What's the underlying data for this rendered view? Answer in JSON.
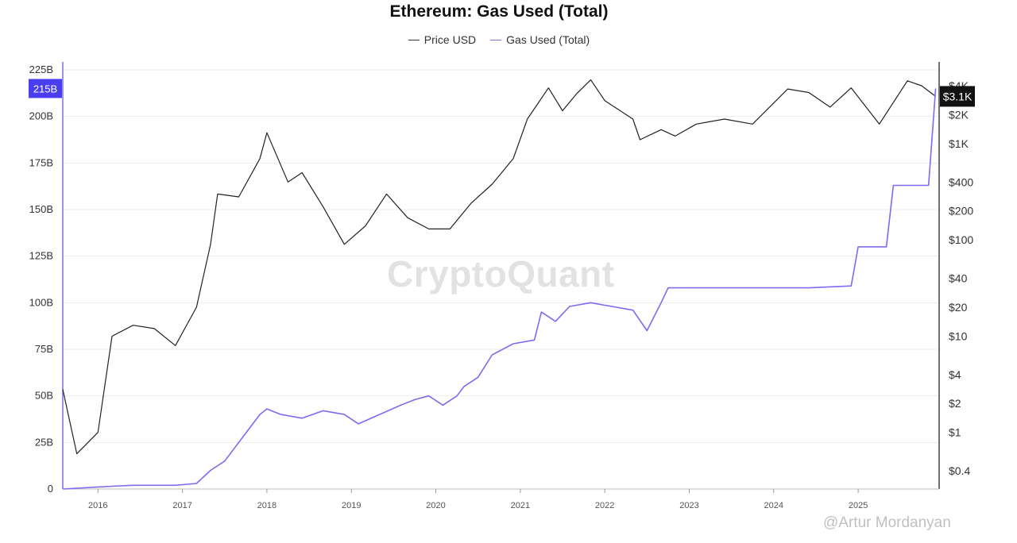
{
  "chart_data": {
    "type": "line",
    "title": "Ethereum: Gas Used (Total)",
    "xlabel": "",
    "ylabel_left": "",
    "ylabel_right": "",
    "x_ticks": [
      "2016",
      "2017",
      "2018",
      "2019",
      "2020",
      "2021",
      "2022",
      "2023",
      "2024",
      "2025"
    ],
    "y_left_ticks": [
      "0",
      "25B",
      "50B",
      "75B",
      "100B",
      "125B",
      "150B",
      "175B",
      "200B",
      "225B"
    ],
    "y_left_range": [
      0,
      225
    ],
    "y_right_ticks": [
      "$0.4",
      "$1",
      "$2",
      "$4",
      "$10",
      "$20",
      "$40",
      "$100",
      "$200",
      "$400",
      "$1K",
      "$2K",
      "$4K"
    ],
    "y_right_scale": "log",
    "grid": "horizontal",
    "legend_position": "top-center",
    "series": [
      {
        "name": "Price USD",
        "color": "#222222",
        "axis": "right",
        "x": [
          "2015-08",
          "2015-10",
          "2016-01",
          "2016-03",
          "2016-06",
          "2016-09",
          "2016-12",
          "2017-03",
          "2017-05",
          "2017-06",
          "2017-09",
          "2017-12",
          "2018-01",
          "2018-04",
          "2018-06",
          "2018-09",
          "2018-12",
          "2019-03",
          "2019-06",
          "2019-09",
          "2019-12",
          "2020-03",
          "2020-06",
          "2020-09",
          "2020-12",
          "2021-02",
          "2021-05",
          "2021-07",
          "2021-09",
          "2021-11",
          "2022-01",
          "2022-05",
          "2022-06",
          "2022-09",
          "2022-11",
          "2023-02",
          "2023-06",
          "2023-10",
          "2024-03",
          "2024-06",
          "2024-09",
          "2024-12",
          "2025-04",
          "2025-08",
          "2025-10",
          "2025-12"
        ],
        "values": [
          2.8,
          0.6,
          1.0,
          10,
          13,
          12,
          8,
          20,
          90,
          300,
          280,
          700,
          1300,
          400,
          500,
          220,
          90,
          140,
          300,
          170,
          130,
          130,
          240,
          380,
          700,
          1800,
          3800,
          2200,
          3300,
          4600,
          2800,
          1800,
          1100,
          1400,
          1200,
          1600,
          1800,
          1600,
          3700,
          3400,
          2400,
          3800,
          1600,
          4500,
          4000,
          3100
        ]
      },
      {
        "name": "Gas Used (Total)",
        "color": "#7b6cf0",
        "axis": "left",
        "x": [
          "2015-08",
          "2016-03",
          "2016-06",
          "2016-12",
          "2017-03",
          "2017-05",
          "2017-07",
          "2017-10",
          "2017-12",
          "2018-01",
          "2018-03",
          "2018-06",
          "2018-09",
          "2018-12",
          "2019-02",
          "2019-05",
          "2019-08",
          "2019-10",
          "2019-12",
          "2020-02",
          "2020-04",
          "2020-05",
          "2020-07",
          "2020-09",
          "2020-12",
          "2021-03",
          "2021-04",
          "2021-06",
          "2021-08",
          "2021-11",
          "2022-02",
          "2022-05",
          "2022-07",
          "2022-09",
          "2022-10",
          "2023-02",
          "2023-06",
          "2024-01",
          "2024-06",
          "2024-12",
          "2025-01",
          "2025-03",
          "2025-05",
          "2025-06",
          "2025-11",
          "2025-12"
        ],
        "values": [
          0,
          1.5,
          2,
          2,
          3,
          10,
          15,
          30,
          40,
          43,
          40,
          38,
          42,
          40,
          35,
          40,
          45,
          48,
          50,
          45,
          50,
          55,
          60,
          72,
          78,
          80,
          95,
          90,
          98,
          100,
          98,
          96,
          85,
          100,
          108,
          108,
          108,
          108,
          108,
          109,
          130,
          130,
          130,
          163,
          163,
          215
        ]
      }
    ],
    "current_value_labels": {
      "left": "215B",
      "right": "$3.1K"
    },
    "annotations": {
      "watermark": "CryptoQuant",
      "credit": "@Artur Mordanyan"
    }
  },
  "colors": {
    "price_line": "#222222",
    "gas_line": "#7b6cf0",
    "left_badge": "#4a3ff0",
    "right_badge": "#111111"
  }
}
